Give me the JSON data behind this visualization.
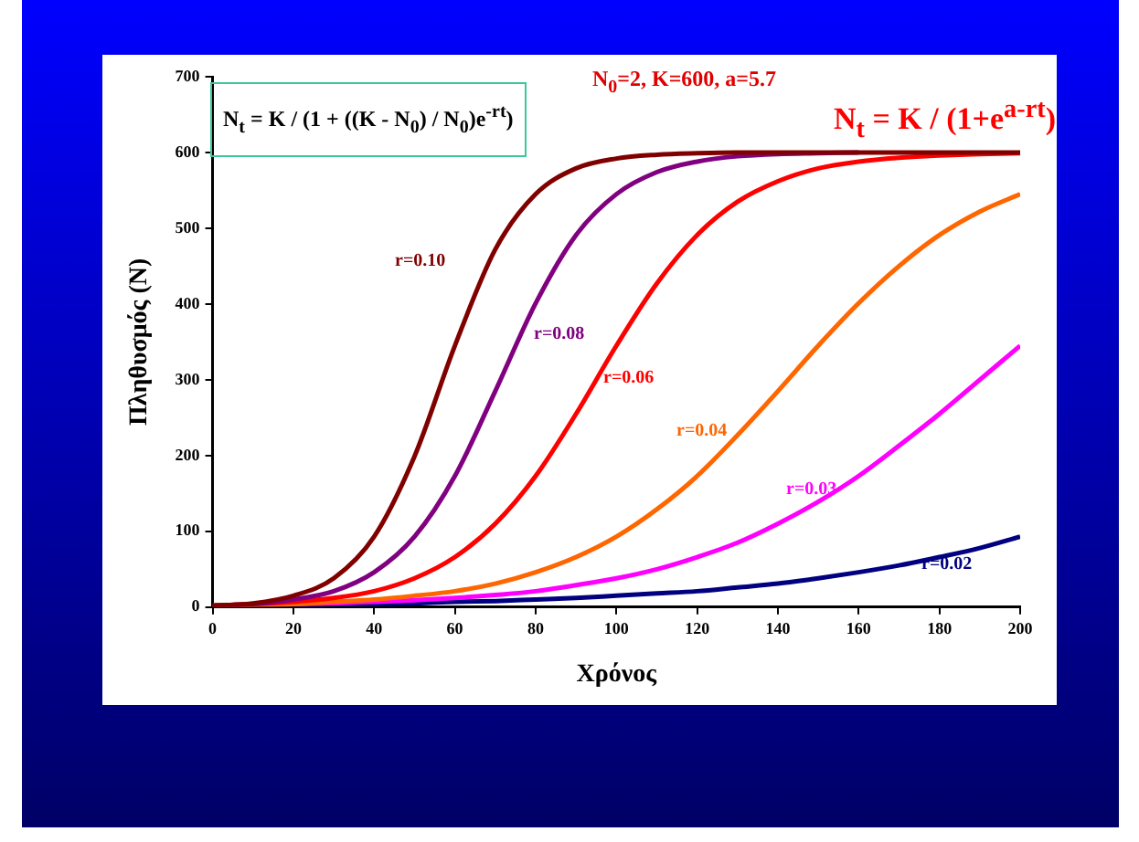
{
  "chart_data": {
    "type": "line",
    "xlabel": "Χρόνος",
    "ylabel": "Πληθυσμός (N)",
    "x": [
      0,
      10,
      20,
      30,
      40,
      50,
      60,
      70,
      80,
      90,
      100,
      110,
      120,
      130,
      140,
      150,
      160,
      170,
      180,
      190,
      200
    ],
    "series": [
      {
        "name": "r=0.10",
        "color": "#800000",
        "values": [
          2,
          5,
          15,
          38,
          93,
          199,
          345,
          472,
          545,
          579,
          592,
          597,
          599,
          600,
          600,
          600,
          600,
          600,
          600,
          600,
          600
        ]
      },
      {
        "name": "r=0.08",
        "color": "#800080",
        "values": [
          2,
          4,
          10,
          21,
          46,
          93,
          173,
          285,
          401,
          491,
          545,
          574,
          588,
          595,
          598,
          599,
          600,
          null,
          null,
          null,
          null
        ]
      },
      {
        "name": "r=0.06",
        "color": "#ff0000",
        "values": [
          2,
          4,
          7,
          12,
          21,
          38,
          66,
          110,
          173,
          255,
          345,
          427,
          491,
          535,
          562,
          579,
          588,
          593,
          596,
          598,
          599
        ]
      },
      {
        "name": "r=0.04",
        "color": "#ff6600",
        "values": [
          2,
          3,
          4,
          7,
          10,
          15,
          21,
          31,
          46,
          66,
          93,
          129,
          173,
          227,
          285,
          345,
          401,
          450,
          491,
          522,
          545
        ]
      },
      {
        "name": "r=0.03",
        "color": "#ff00ff",
        "values": [
          null,
          null,
          4,
          5,
          7,
          9,
          12,
          16,
          21,
          29,
          38,
          50,
          66,
          85,
          110,
          139,
          173,
          213,
          255,
          300,
          345
        ]
      },
      {
        "name": "r=0.02",
        "color": "#000080",
        "values": [
          null,
          null,
          3,
          4,
          4,
          5,
          7,
          8,
          10,
          12,
          15,
          18,
          21,
          26,
          31,
          38,
          46,
          55,
          66,
          78,
          93
        ]
      }
    ],
    "xlim": [
      0,
      200
    ],
    "xticks": [
      0,
      20,
      40,
      60,
      80,
      100,
      120,
      140,
      160,
      180,
      200
    ],
    "ylim": [
      0,
      700
    ],
    "yticks": [
      0,
      100,
      200,
      300,
      400,
      500,
      600,
      700
    ],
    "grid": false,
    "legend": false,
    "marker": "none",
    "line_style": "solid",
    "annotations": [
      "N$_{t}$ = K / (1 + ((K - N$_{0}$) / N$_{0}$)e$^{-rt}$)",
      "N$_{0}$=2,  K=600,  a=5.7",
      "N$_{t}$ = K / (1+e$^{a-rt}$)"
    ]
  }
}
